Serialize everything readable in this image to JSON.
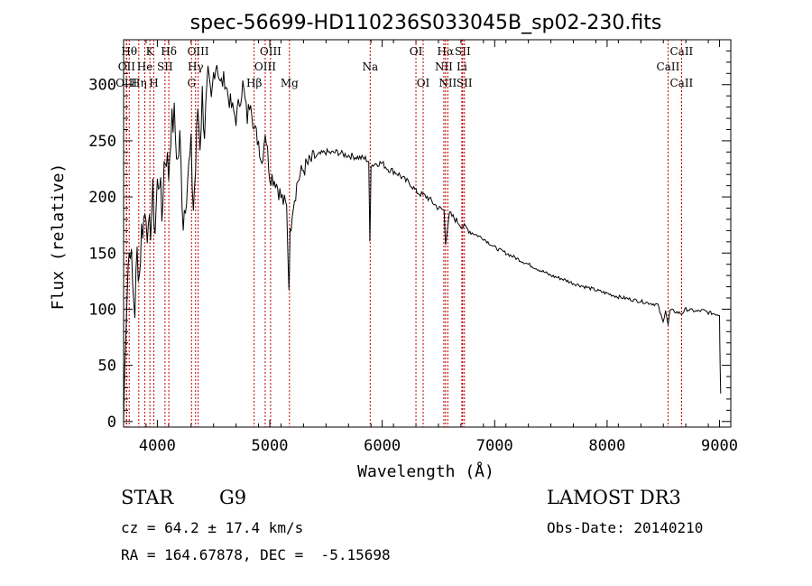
{
  "chart_data": {
    "type": "line",
    "title": "spec-56699-HD110236S033045B_sp02-230.fits",
    "xlabel": "Wavelength (Å)",
    "ylabel": "Flux (relative)",
    "xlim": [
      3700,
      9100
    ],
    "ylim": [
      -5,
      340
    ],
    "x_ticks": [
      4000,
      5000,
      6000,
      7000,
      8000,
      9000
    ],
    "y_ticks": [
      0,
      50,
      100,
      150,
      200,
      250,
      300
    ],
    "grid": false,
    "series": [
      {
        "name": "spectrum",
        "x": [
          3700,
          3720,
          3740,
          3760,
          3780,
          3800,
          3820,
          3840,
          3860,
          3880,
          3900,
          3920,
          3940,
          3960,
          3980,
          4000,
          4020,
          4040,
          4060,
          4080,
          4100,
          4120,
          4150,
          4180,
          4200,
          4230,
          4260,
          4300,
          4320,
          4340,
          4360,
          4380,
          4400,
          4420,
          4450,
          4480,
          4500,
          4530,
          4560,
          4600,
          4630,
          4660,
          4700,
          4730,
          4760,
          4800,
          4830,
          4860,
          4900,
          4930,
          4960,
          5000,
          5050,
          5100,
          5150,
          5170,
          5180,
          5200,
          5250,
          5300,
          5350,
          5400,
          5450,
          5500,
          5550,
          5600,
          5650,
          5700,
          5750,
          5800,
          5850,
          5880,
          5890,
          5900,
          5950,
          6000,
          6050,
          6100,
          6150,
          6200,
          6250,
          6300,
          6350,
          6400,
          6450,
          6500,
          6550,
          6563,
          6600,
          6650,
          6700,
          6750,
          6800,
          6900,
          7000,
          7100,
          7200,
          7300,
          7400,
          7500,
          7600,
          7700,
          7800,
          7900,
          8000,
          8100,
          8200,
          8300,
          8400,
          8450,
          8498,
          8520,
          8542,
          8560,
          8600,
          8662,
          8700,
          8750,
          8800,
          8850,
          8900,
          8950,
          9000,
          9005,
          9010
        ],
        "y": [
          0,
          90,
          140,
          160,
          120,
          100,
          150,
          130,
          170,
          180,
          190,
          160,
          175,
          200,
          170,
          210,
          220,
          180,
          230,
          240,
          220,
          260,
          270,
          230,
          250,
          180,
          210,
          240,
          190,
          225,
          280,
          250,
          290,
          260,
          300,
          280,
          310,
          320,
          300,
          305,
          290,
          280,
          270,
          285,
          300,
          270,
          290,
          260,
          250,
          230,
          260,
          220,
          215,
          200,
          190,
          120,
          165,
          190,
          215,
          225,
          230,
          235,
          238,
          240,
          239,
          240,
          238,
          237,
          236,
          235,
          234,
          232,
          160,
          228,
          230,
          230,
          225,
          223,
          220,
          215,
          212,
          205,
          202,
          200,
          195,
          190,
          188,
          160,
          185,
          180,
          175,
          172,
          168,
          163,
          155,
          150,
          145,
          140,
          135,
          130,
          127,
          123,
          120,
          117,
          114,
          111,
          109,
          107,
          105,
          104,
          88,
          100,
          86,
          99,
          98,
          96,
          100,
          99,
          98,
          99,
          97,
          96,
          95,
          50,
          25
        ]
      }
    ],
    "lines": [
      {
        "label": "Hθ",
        "x": 3750,
        "row": 0
      },
      {
        "label": "OII",
        "x": 3727,
        "row": 1
      },
      {
        "label": "OIII",
        "x": 3725,
        "row": 2
      },
      {
        "label": "K",
        "x": 3934,
        "row": 0
      },
      {
        "label": "Hη",
        "x": 3835,
        "row": 2
      },
      {
        "label": "He",
        "x": 3889,
        "row": 1
      },
      {
        "label": "SII",
        "x": 4068,
        "row": 1
      },
      {
        "label": "H",
        "x": 3969,
        "row": 2
      },
      {
        "label": "Hδ",
        "x": 4102,
        "row": 0
      },
      {
        "label": "OIII",
        "x": 4363,
        "row": 0
      },
      {
        "label": "Hγ",
        "x": 4340,
        "row": 1
      },
      {
        "label": "G",
        "x": 4304,
        "row": 2
      },
      {
        "label": "OIII",
        "x": 5007,
        "row": 0
      },
      {
        "label": "OIII",
        "x": 4959,
        "row": 1
      },
      {
        "label": "Hβ",
        "x": 4861,
        "row": 2
      },
      {
        "label": "Mg",
        "x": 5175,
        "row": 2
      },
      {
        "label": "Na",
        "x": 5893,
        "row": 1
      },
      {
        "label": "OI",
        "x": 6300,
        "row": 0
      },
      {
        "label": "OI",
        "x": 6364,
        "row": 2
      },
      {
        "label": "Hα",
        "x": 6563,
        "row": 0
      },
      {
        "label": "SII",
        "x": 6716,
        "row": 0
      },
      {
        "label": "NII",
        "x": 6548,
        "row": 1
      },
      {
        "label": "Li",
        "x": 6708,
        "row": 1
      },
      {
        "label": "NII",
        "x": 6583,
        "row": 2
      },
      {
        "label": "SII",
        "x": 6731,
        "row": 2
      },
      {
        "label": "CaII",
        "x": 8662,
        "row": 0
      },
      {
        "label": "CaII",
        "x": 8542,
        "row": 1
      },
      {
        "label": "CaII",
        "x": 8662,
        "row": 2
      }
    ]
  },
  "info": {
    "object_class": "STAR",
    "subclass": "G9",
    "survey": "LAMOST DR3",
    "cz": "cz = 64.2 ± 17.4 km/s",
    "obs_date": "Obs-Date: 20140210",
    "coords": "RA = 164.67878, DEC =  -5.15698"
  }
}
